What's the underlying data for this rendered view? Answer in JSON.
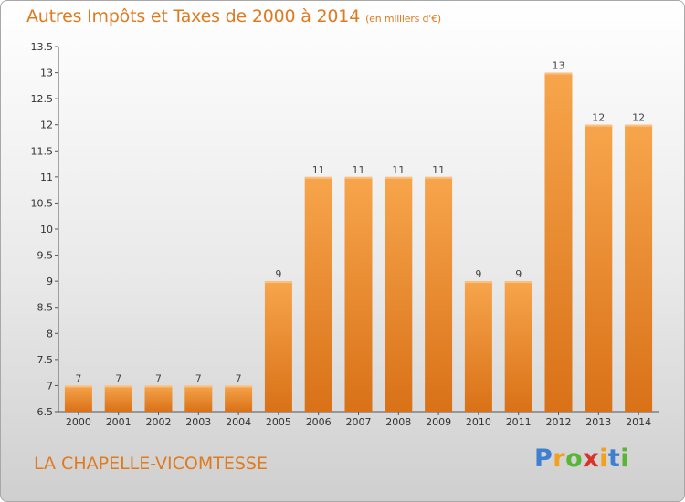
{
  "chart_data": {
    "type": "bar",
    "title": "Autres Impôts et Taxes de 2000 à 2014",
    "subtitle": "(en milliers d'€)",
    "categories": [
      "2000",
      "2001",
      "2002",
      "2003",
      "2004",
      "2005",
      "2006",
      "2007",
      "2008",
      "2009",
      "2010",
      "2011",
      "2012",
      "2013",
      "2014"
    ],
    "values": [
      7,
      7,
      7,
      7,
      7,
      9,
      11,
      11,
      11,
      11,
      9,
      9,
      13,
      12,
      12
    ],
    "ylim": [
      6.5,
      13.5
    ],
    "yticks": [
      "6.5",
      "7",
      "7.5",
      "8",
      "8.5",
      "9",
      "9.5",
      "10",
      "10.5",
      "11",
      "11.5",
      "12",
      "12.5",
      "13",
      "13.5"
    ],
    "grid": false,
    "bar_color": "#f0953a"
  },
  "footer": {
    "commune": "LA CHAPELLE-VICOMTESSE",
    "logo": {
      "p": "P",
      "r": "r",
      "o": "o",
      "x": "x",
      "i1": "i",
      "t": "t",
      "i2": "i"
    }
  }
}
